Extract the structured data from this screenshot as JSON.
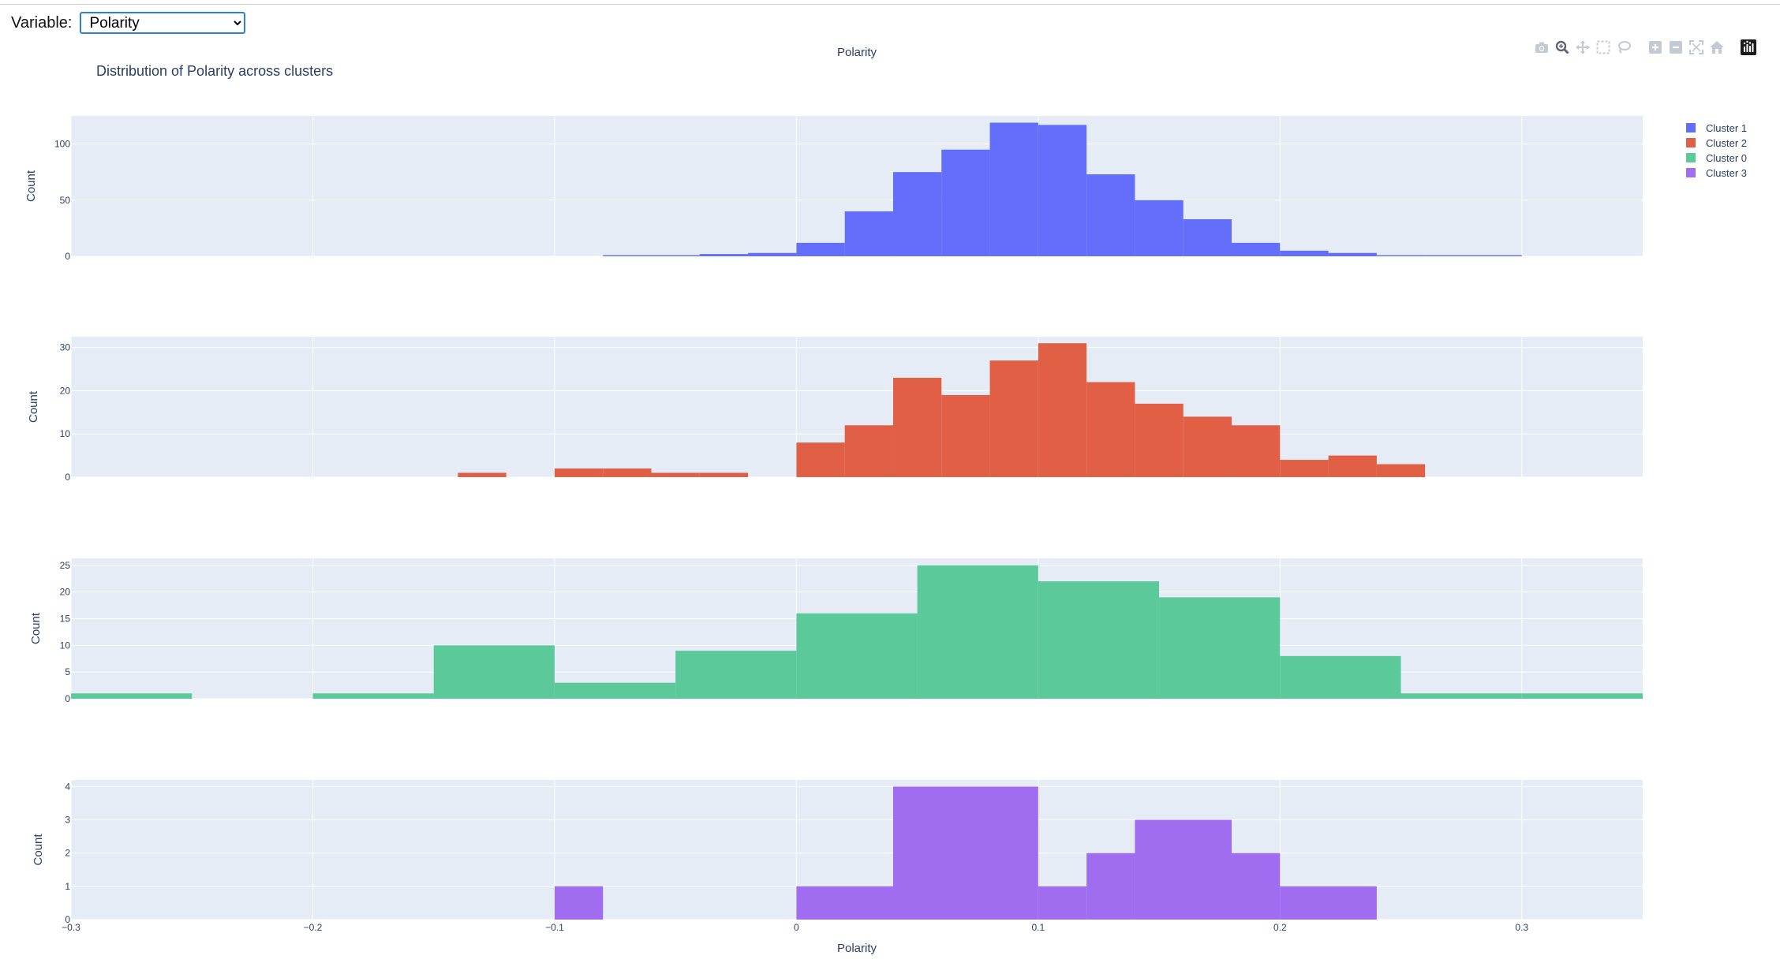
{
  "controls": {
    "label": "Variable:",
    "selected": "Polarity",
    "options": [
      "Polarity"
    ]
  },
  "modebar": {
    "buttons": [
      "camera-icon",
      "zoom-icon",
      "pan-icon",
      "box-select-icon",
      "lasso-icon",
      "zoom-in-icon",
      "zoom-out-icon",
      "autoscale-icon",
      "reset-axes-icon",
      "plotly-logo-icon"
    ]
  },
  "chart_data": {
    "type": "bar",
    "title": "Polarity",
    "subtitle": "Distribution of Polarity across clusters",
    "xlabel": "Polarity",
    "ylabel": "Count",
    "xlim": [
      -0.3,
      0.35
    ],
    "xticks": [
      -0.3,
      -0.2,
      -0.1,
      0,
      0.1,
      0.2,
      0.3
    ],
    "xtick_labels": [
      "−0.3",
      "−0.2",
      "−0.1",
      "0",
      "0.1",
      "0.2",
      "0.3"
    ],
    "grid": true,
    "legend_position": "top-right",
    "series": [
      {
        "name": "Cluster 1",
        "color": "#636efa",
        "ylim": [
          0,
          125
        ],
        "yticks": [
          0,
          50,
          100
        ],
        "bins": [
          [
            -0.08,
            -0.06,
            1
          ],
          [
            -0.06,
            -0.04,
            1
          ],
          [
            -0.04,
            -0.02,
            2
          ],
          [
            -0.02,
            0.0,
            3
          ],
          [
            0.0,
            0.02,
            12
          ],
          [
            0.02,
            0.04,
            40
          ],
          [
            0.04,
            0.06,
            75
          ],
          [
            0.06,
            0.08,
            95
          ],
          [
            0.08,
            0.1,
            119
          ],
          [
            0.1,
            0.12,
            117
          ],
          [
            0.12,
            0.14,
            73
          ],
          [
            0.14,
            0.16,
            50
          ],
          [
            0.16,
            0.18,
            33
          ],
          [
            0.18,
            0.2,
            12
          ],
          [
            0.2,
            0.22,
            5
          ],
          [
            0.22,
            0.24,
            3
          ],
          [
            0.24,
            0.26,
            1
          ],
          [
            0.26,
            0.28,
            1
          ],
          [
            0.28,
            0.3,
            1
          ]
        ]
      },
      {
        "name": "Cluster 2",
        "color": "#e05f45",
        "ylim": [
          0,
          32.5
        ],
        "yticks": [
          0,
          10,
          20,
          30
        ],
        "bins": [
          [
            -0.14,
            -0.12,
            1
          ],
          [
            -0.1,
            -0.08,
            2
          ],
          [
            -0.08,
            -0.06,
            2
          ],
          [
            -0.06,
            -0.04,
            1
          ],
          [
            -0.04,
            -0.02,
            1
          ],
          [
            0.0,
            0.02,
            8
          ],
          [
            0.02,
            0.04,
            12
          ],
          [
            0.04,
            0.06,
            23
          ],
          [
            0.06,
            0.08,
            19
          ],
          [
            0.08,
            0.1,
            27
          ],
          [
            0.1,
            0.12,
            31
          ],
          [
            0.12,
            0.14,
            22
          ],
          [
            0.14,
            0.16,
            17
          ],
          [
            0.16,
            0.18,
            14
          ],
          [
            0.18,
            0.2,
            12
          ],
          [
            0.2,
            0.22,
            4
          ],
          [
            0.22,
            0.24,
            5
          ],
          [
            0.24,
            0.26,
            3
          ]
        ]
      },
      {
        "name": "Cluster 0",
        "color": "#5cc99b",
        "ylim": [
          0,
          26.3
        ],
        "yticks": [
          0,
          5,
          10,
          15,
          20,
          25
        ],
        "bins": [
          [
            -0.3,
            -0.25,
            1
          ],
          [
            -0.2,
            -0.15,
            1
          ],
          [
            -0.15,
            -0.1,
            10
          ],
          [
            -0.1,
            -0.05,
            3
          ],
          [
            -0.05,
            0.0,
            9
          ],
          [
            0.0,
            0.05,
            16
          ],
          [
            0.05,
            0.1,
            25
          ],
          [
            0.1,
            0.15,
            22
          ],
          [
            0.15,
            0.2,
            19
          ],
          [
            0.2,
            0.25,
            8
          ],
          [
            0.25,
            0.3,
            1
          ],
          [
            0.3,
            0.35,
            1
          ]
        ]
      },
      {
        "name": "Cluster 3",
        "color": "#a06cf0",
        "ylim": [
          0,
          4.2
        ],
        "yticks": [
          0,
          1,
          2,
          3,
          4
        ],
        "bins": [
          [
            -0.1,
            -0.08,
            1
          ],
          [
            0.0,
            0.04,
            1
          ],
          [
            0.04,
            0.1,
            4
          ],
          [
            0.1,
            0.12,
            1
          ],
          [
            0.12,
            0.14,
            2
          ],
          [
            0.14,
            0.18,
            3
          ],
          [
            0.18,
            0.2,
            2
          ],
          [
            0.2,
            0.24,
            1
          ]
        ]
      }
    ]
  }
}
